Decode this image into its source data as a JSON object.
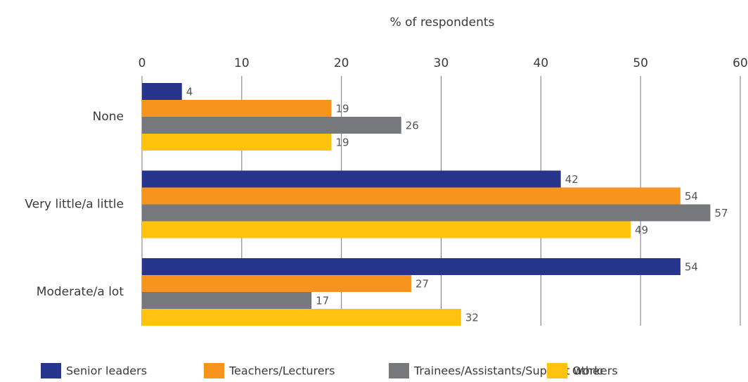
{
  "chart_data": {
    "type": "bar",
    "x_label": "% of respondents",
    "categories": [
      "None",
      "Very little/a little",
      "Moderate/a lot"
    ],
    "series": [
      {
        "name": "Senior leaders",
        "color": "#27348b",
        "values": [
          4,
          42,
          54
        ]
      },
      {
        "name": "Teachers/Lecturers",
        "color": "#f7941d",
        "values": [
          19,
          54,
          27
        ]
      },
      {
        "name": "Trainees/Assistants/Support workers",
        "color": "#77787b",
        "values": [
          26,
          57,
          17
        ]
      },
      {
        "name": "Other",
        "color": "#ffc20e",
        "values": [
          19,
          49,
          32
        ]
      }
    ],
    "xlim": [
      0,
      60
    ],
    "xticks": [
      0,
      10,
      20,
      30,
      40,
      50,
      60
    ],
    "grid": true
  }
}
